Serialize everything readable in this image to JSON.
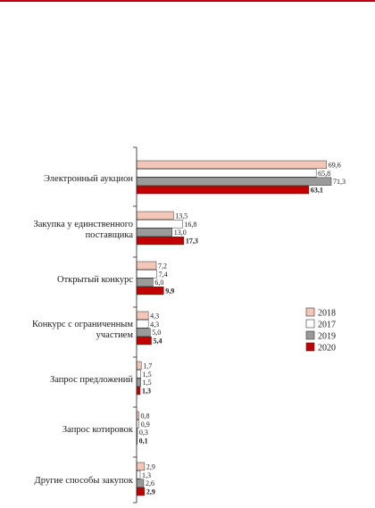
{
  "chart_data": {
    "type": "bar",
    "orientation": "horizontal",
    "categories": [
      [
        "Электронный аукцион"
      ],
      [
        "Закупка у единственного",
        "поставщика"
      ],
      [
        "Открытый конкурс"
      ],
      [
        "Конкурс с ограниченным",
        "участием"
      ],
      [
        "Запрос предложений"
      ],
      [
        "Запрос котировок"
      ],
      [
        "Другие способы закупок"
      ]
    ],
    "series": [
      {
        "name": "2018",
        "color": "#f4c6b8",
        "values": [
          69.6,
          13.5,
          7.2,
          4.3,
          1.7,
          0.8,
          2.9
        ],
        "labels": [
          "69,6",
          "13,5",
          "7,2",
          "4,3",
          "1,7",
          "0,8",
          "2,9"
        ]
      },
      {
        "name": "2017",
        "color": "#ffffff",
        "values": [
          65.8,
          16.8,
          7.4,
          4.3,
          1.5,
          0.9,
          1.3
        ],
        "labels": [
          "65,8",
          "16,8",
          "7,4",
          "4,3",
          "1,5",
          "0,9",
          "1,3"
        ]
      },
      {
        "name": "2019",
        "color": "#9a9a9a",
        "values": [
          71.3,
          13.0,
          6.0,
          5.0,
          1.5,
          0.3,
          2.6
        ],
        "labels": [
          "71,3",
          "13,0",
          "6,0",
          "5,0",
          "1,5",
          "0,3",
          "2,6"
        ]
      },
      {
        "name": "2020",
        "color": "#c00000",
        "values": [
          63.1,
          17.3,
          9.9,
          5.4,
          1.3,
          0.1,
          2.9
        ],
        "labels": [
          "63,1",
          "17,3",
          "9,9",
          "5,4",
          "1,3",
          "0,1",
          "2,9"
        ]
      }
    ],
    "xlim": [
      0,
      71.3
    ],
    "grid": false,
    "legend_position": "right",
    "legend_order": [
      "2018",
      "2017",
      "2019",
      "2020"
    ],
    "bold_series": "2020"
  }
}
